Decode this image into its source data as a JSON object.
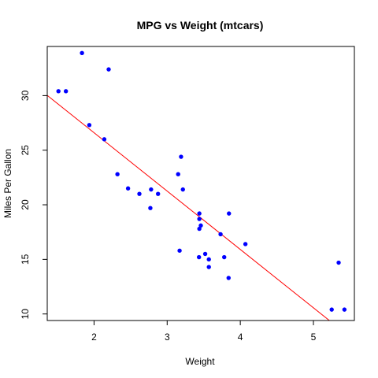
{
  "chart_data": {
    "type": "scatter",
    "title": "MPG vs Weight (mtcars)",
    "xlabel": "Weight",
    "ylabel": "Miles Per Gallon",
    "xlim": [
      1.36,
      5.56
    ],
    "ylim": [
      9.4,
      34.5
    ],
    "xticks": [
      2,
      3,
      4,
      5
    ],
    "yticks": [
      10,
      15,
      20,
      25,
      30
    ],
    "grid": false,
    "point_color": "#0000ff",
    "line_color": "#ff0000",
    "series": [
      {
        "points": [
          [
            2.62,
            21.0
          ],
          [
            2.875,
            21.0
          ],
          [
            2.32,
            22.8
          ],
          [
            3.215,
            21.4
          ],
          [
            3.44,
            18.7
          ],
          [
            3.46,
            18.1
          ],
          [
            3.57,
            14.3
          ],
          [
            3.19,
            24.4
          ],
          [
            3.15,
            22.8
          ],
          [
            3.44,
            19.2
          ],
          [
            3.44,
            17.8
          ],
          [
            4.07,
            16.4
          ],
          [
            3.73,
            17.3
          ],
          [
            3.78,
            15.2
          ],
          [
            5.25,
            10.4
          ],
          [
            5.424,
            10.4
          ],
          [
            5.345,
            14.7
          ],
          [
            2.2,
            32.4
          ],
          [
            1.615,
            30.4
          ],
          [
            1.835,
            33.9
          ],
          [
            2.465,
            21.5
          ],
          [
            3.52,
            15.5
          ],
          [
            3.435,
            15.2
          ],
          [
            3.84,
            13.3
          ],
          [
            3.845,
            19.2
          ],
          [
            1.935,
            27.3
          ],
          [
            2.14,
            26.0
          ],
          [
            1.513,
            30.4
          ],
          [
            3.17,
            15.8
          ],
          [
            2.77,
            19.7
          ],
          [
            3.57,
            15.0
          ],
          [
            2.78,
            21.4
          ]
        ]
      }
    ],
    "regression_line": {
      "intercept": 37.285,
      "slope": -5.344
    }
  }
}
